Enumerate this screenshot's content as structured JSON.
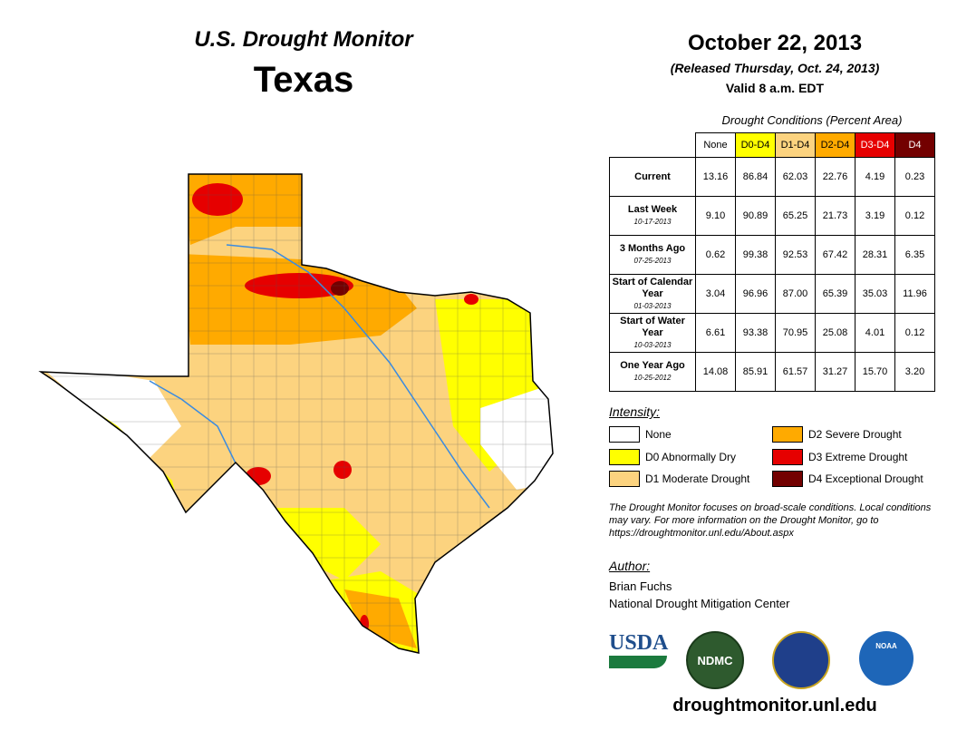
{
  "header": {
    "subtitle": "U.S. Drought Monitor",
    "title": "Texas",
    "date": "October 22, 2013",
    "released": "(Released Thursday, Oct. 24, 2013)",
    "valid": "Valid 8 a.m. EDT"
  },
  "table": {
    "caption": "Drought Conditions (Percent Area)",
    "columns": [
      "None",
      "D0-D4",
      "D1-D4",
      "D2-D4",
      "D3-D4",
      "D4"
    ],
    "column_colors": [
      "#ffffff",
      "#ffff00",
      "#fcd37f",
      "#ffaa00",
      "#e60000",
      "#730000"
    ],
    "rows": [
      {
        "label": "Current",
        "date": "",
        "values": [
          "13.16",
          "86.84",
          "62.03",
          "22.76",
          "4.19",
          "0.23"
        ]
      },
      {
        "label": "Last Week",
        "date": "10-17-2013",
        "values": [
          "9.10",
          "90.89",
          "65.25",
          "21.73",
          "3.19",
          "0.12"
        ]
      },
      {
        "label": "3 Months Ago",
        "date": "07-25-2013",
        "values": [
          "0.62",
          "99.38",
          "92.53",
          "67.42",
          "28.31",
          "6.35"
        ]
      },
      {
        "label": "Start of Calendar Year",
        "date": "01-03-2013",
        "values": [
          "3.04",
          "96.96",
          "87.00",
          "65.39",
          "35.03",
          "11.96"
        ]
      },
      {
        "label": "Start of Water Year",
        "date": "10-03-2013",
        "values": [
          "6.61",
          "93.38",
          "70.95",
          "25.08",
          "4.01",
          "0.12"
        ]
      },
      {
        "label": "One Year Ago",
        "date": "10-25-2012",
        "values": [
          "14.08",
          "85.91",
          "61.57",
          "31.27",
          "15.70",
          "3.20"
        ]
      }
    ]
  },
  "legend": {
    "title": "Intensity:",
    "items": [
      {
        "label": "None",
        "color": "#ffffff"
      },
      {
        "label": "D0 Abnormally Dry",
        "color": "#ffff00"
      },
      {
        "label": "D1 Moderate Drought",
        "color": "#fcd37f"
      },
      {
        "label": "D2 Severe Drought",
        "color": "#ffaa00"
      },
      {
        "label": "D3 Extreme Drought",
        "color": "#e60000"
      },
      {
        "label": "D4 Exceptional Drought",
        "color": "#730000"
      }
    ]
  },
  "note": "The Drought Monitor focuses on broad-scale conditions. Local conditions may vary. For more information on the Drought Monitor, go to https://droughtmonitor.unl.edu/About.aspx",
  "author": {
    "label": "Author:",
    "name": "Brian Fuchs",
    "org": "National Drought Mitigation Center"
  },
  "logos": {
    "usda": "USDA",
    "ndmc": "NDMC",
    "noaa": "NOAA"
  },
  "url": "droughtmonitor.unl.edu"
}
